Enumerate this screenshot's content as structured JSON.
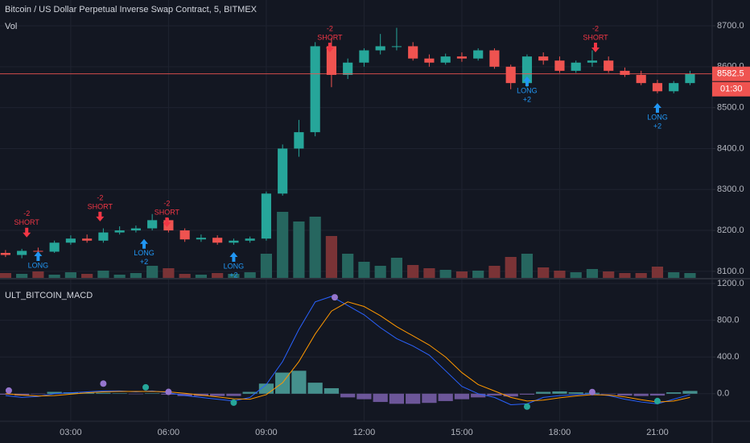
{
  "chart_data": [
    {
      "type": "candlestick",
      "title": "Bitcoin / US Dollar Perpetual Inverse Swap Contract, 5, BITMEX",
      "x": [
        1.0,
        1.5,
        2.0,
        2.5,
        3.0,
        3.5,
        4.0,
        4.5,
        5.0,
        5.5,
        6.0,
        6.5,
        7.0,
        7.5,
        8.0,
        8.5,
        9.0,
        9.5,
        10.0,
        10.5,
        11.0,
        11.5,
        12.0,
        12.5,
        13.0,
        13.5,
        14.0,
        14.5,
        15.0,
        15.5,
        16.0,
        16.5,
        17.0,
        17.5,
        18.0,
        18.5,
        19.0,
        19.5,
        20.0,
        20.5,
        21.0,
        21.5,
        22.0
      ],
      "open": [
        8145,
        8140,
        8150,
        8148,
        8170,
        8180,
        8175,
        8195,
        8200,
        8205,
        8225,
        8200,
        8178,
        8182,
        8170,
        8175,
        8180,
        8290,
        8400,
        8440,
        8650,
        8580,
        8610,
        8640,
        8650,
        8650,
        8620,
        8610,
        8625,
        8620,
        8640,
        8600,
        8560,
        8625,
        8615,
        8590,
        8610,
        8615,
        8590,
        8580,
        8560,
        8540,
        8560
      ],
      "high": [
        8152,
        8155,
        8158,
        8175,
        8188,
        8190,
        8205,
        8210,
        8212,
        8240,
        8230,
        8205,
        8190,
        8188,
        8180,
        8185,
        8295,
        8410,
        8470,
        8660,
        8670,
        8620,
        8645,
        8680,
        8695,
        8660,
        8630,
        8632,
        8635,
        8645,
        8645,
        8605,
        8630,
        8635,
        8625,
        8615,
        8640,
        8625,
        8598,
        8590,
        8568,
        8565,
        8590
      ],
      "low": [
        8135,
        8132,
        8140,
        8145,
        8165,
        8170,
        8170,
        8190,
        8195,
        8200,
        8195,
        8172,
        8172,
        8165,
        8165,
        8170,
        8175,
        8285,
        8380,
        8430,
        8550,
        8570,
        8600,
        8630,
        8640,
        8615,
        8600,
        8605,
        8612,
        8615,
        8595,
        8545,
        8550,
        8605,
        8585,
        8585,
        8600,
        8585,
        8575,
        8555,
        8535,
        8535,
        8555
      ],
      "close": [
        8140,
        8150,
        8148,
        8170,
        8180,
        8175,
        8195,
        8200,
        8205,
        8225,
        8200,
        8178,
        8182,
        8170,
        8175,
        8180,
        8290,
        8400,
        8440,
        8650,
        8580,
        8610,
        8640,
        8650,
        8650,
        8620,
        8610,
        8625,
        8620,
        8640,
        8600,
        8560,
        8625,
        8615,
        8590,
        8610,
        8615,
        8590,
        8580,
        8560,
        8540,
        8560,
        8582.5
      ],
      "volume": {
        "label": "Vol",
        "lim": [
          0,
          1000
        ],
        "values": [
          60,
          50,
          80,
          40,
          70,
          50,
          90,
          40,
          60,
          150,
          120,
          50,
          40,
          60,
          50,
          70,
          300,
          820,
          700,
          760,
          520,
          300,
          200,
          150,
          250,
          160,
          120,
          100,
          80,
          90,
          150,
          260,
          300,
          130,
          90,
          70,
          110,
          80,
          60,
          60,
          140,
          70,
          60
        ]
      },
      "price_line": 8582.5,
      "price_line_color": "#ef5350",
      "countdown": "01:30",
      "up_color": "#26a69a",
      "down_color": "#ef5350",
      "volume_up_color": "#26665f",
      "volume_down_color": "#7a3336",
      "xlim": [
        0.83,
        22.68
      ],
      "ylim": [
        8084,
        8763
      ],
      "yticks": [
        {
          "value": 8100,
          "label": "8100.0"
        },
        {
          "value": 8200,
          "label": "8200.0"
        },
        {
          "value": 8300,
          "label": "8300.0"
        },
        {
          "value": 8400,
          "label": "8400.0"
        },
        {
          "value": 8500,
          "label": "8500.0"
        },
        {
          "value": 8600,
          "label": "8600.0"
        },
        {
          "value": 8700,
          "label": "8700.0"
        }
      ],
      "grid": true,
      "signals": [
        {
          "x": 1.65,
          "price": 8183,
          "kind": "short",
          "text": [
            "-2",
            "SHORT"
          ]
        },
        {
          "x": 2.0,
          "price": 8149,
          "kind": "long",
          "text": [
            "LONG"
          ]
        },
        {
          "x": 3.9,
          "price": 8222,
          "kind": "short",
          "text": [
            "-2",
            "SHORT"
          ]
        },
        {
          "x": 5.25,
          "price": 8179,
          "kind": "long",
          "text": [
            "LONG",
            "+2"
          ]
        },
        {
          "x": 5.95,
          "price": 8208,
          "kind": "short",
          "text": [
            "-2",
            "SHORT"
          ]
        },
        {
          "x": 8.0,
          "price": 8147,
          "kind": "long",
          "text": [
            "LONG",
            "+2"
          ]
        },
        {
          "x": 10.95,
          "price": 8635,
          "kind": "short",
          "text": [
            "-2",
            "SHORT"
          ]
        },
        {
          "x": 17.0,
          "price": 8576,
          "kind": "long",
          "text": [
            "LONG",
            "+2"
          ]
        },
        {
          "x": 19.1,
          "price": 8635,
          "kind": "short",
          "text": [
            "-2",
            "SHORT"
          ]
        },
        {
          "x": 21.0,
          "price": 8511,
          "kind": "long",
          "text": [
            "LONG",
            "+2"
          ]
        }
      ],
      "short_color": "#f23645",
      "long_color": "#2196f3"
    },
    {
      "type": "macd",
      "title": "ULT_BITCOIN_MACD",
      "x": [
        1.0,
        1.5,
        2.0,
        2.5,
        3.0,
        3.5,
        4.0,
        4.5,
        5.0,
        5.5,
        6.0,
        6.5,
        7.0,
        7.5,
        8.0,
        8.5,
        9.0,
        9.5,
        10.0,
        10.5,
        11.0,
        11.5,
        12.0,
        12.5,
        13.0,
        13.5,
        14.0,
        14.5,
        15.0,
        15.5,
        16.0,
        16.5,
        17.0,
        17.5,
        18.0,
        18.5,
        19.0,
        19.5,
        20.0,
        20.5,
        21.0,
        21.5,
        22.0
      ],
      "series": [
        {
          "color": "#2962ff",
          "values": [
            -20,
            -40,
            -30,
            0,
            10,
            20,
            30,
            30,
            20,
            30,
            10,
            -20,
            -40,
            -60,
            -80,
            -40,
            100,
            350,
            700,
            1000,
            1060,
            960,
            860,
            720,
            600,
            520,
            420,
            250,
            80,
            0,
            -40,
            -120,
            -110,
            -40,
            -20,
            -10,
            0,
            -20,
            -60,
            -90,
            -110,
            -60,
            -10
          ]
        },
        {
          "color": "#ff9800",
          "values": [
            0,
            -15,
            -25,
            -20,
            -5,
            10,
            20,
            25,
            25,
            25,
            20,
            5,
            -15,
            -35,
            -55,
            -60,
            -10,
            120,
            350,
            650,
            900,
            1000,
            950,
            850,
            730,
            630,
            530,
            400,
            230,
            100,
            30,
            -40,
            -80,
            -70,
            -45,
            -25,
            -10,
            -15,
            -35,
            -65,
            -90,
            -80,
            -40
          ]
        }
      ],
      "histogram": {
        "up_color": "#4fa6a0",
        "down_color": "#7d62ae",
        "values": [
          -10,
          -20,
          -5,
          20,
          15,
          10,
          10,
          5,
          -5,
          5,
          -10,
          -25,
          -25,
          -25,
          -25,
          20,
          110,
          230,
          250,
          120,
          60,
          -40,
          -60,
          -90,
          -110,
          -110,
          -100,
          -80,
          -60,
          -40,
          -20,
          -30,
          -10,
          20,
          25,
          15,
          10,
          -5,
          -20,
          -25,
          -20,
          15,
          30
        ]
      },
      "crosses": [
        {
          "x": 1.1,
          "value": 35,
          "color": "#9575cd"
        },
        {
          "x": 4.0,
          "value": 110,
          "color": "#9575cd"
        },
        {
          "x": 5.3,
          "value": 70,
          "color": "#26a69a"
        },
        {
          "x": 6.0,
          "value": 20,
          "color": "#9575cd"
        },
        {
          "x": 8.0,
          "value": -97,
          "color": "#26a69a"
        },
        {
          "x": 11.1,
          "value": 1050,
          "color": "#9575cd"
        },
        {
          "x": 17.0,
          "value": -140,
          "color": "#26a69a"
        },
        {
          "x": 19.0,
          "value": 18,
          "color": "#9575cd"
        },
        {
          "x": 21.0,
          "value": -80,
          "color": "#26a69a"
        }
      ],
      "xlim": [
        0.83,
        22.68
      ],
      "ylim": [
        -300,
        1244
      ],
      "yticks": [
        {
          "value": 0,
          "label": "0.0"
        },
        {
          "value": 400,
          "label": "400.0"
        },
        {
          "value": 800,
          "label": "800.0"
        },
        {
          "value": 1200,
          "label": "1200.0"
        }
      ],
      "xticks": [
        {
          "value": 3,
          "label": "03:00"
        },
        {
          "value": 6,
          "label": "06:00"
        },
        {
          "value": 9,
          "label": "09:00"
        },
        {
          "value": 12,
          "label": "12:00"
        },
        {
          "value": 15,
          "label": "15:00"
        },
        {
          "value": 18,
          "label": "18:00"
        },
        {
          "value": 21,
          "label": "21:00"
        }
      ],
      "grid": true
    }
  ]
}
